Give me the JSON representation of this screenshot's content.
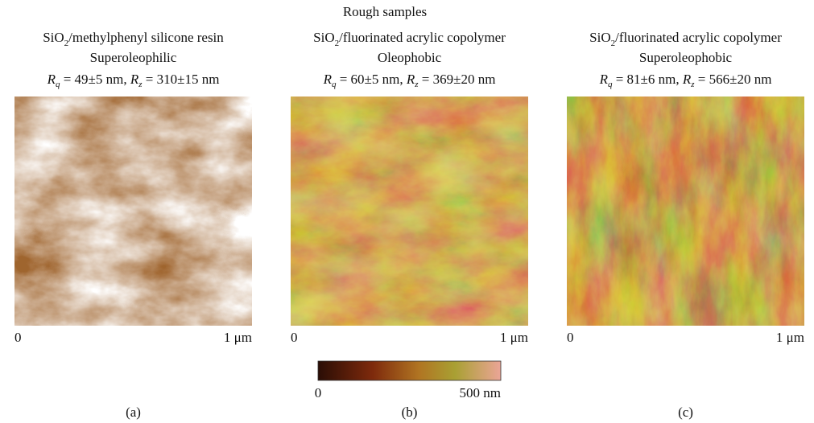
{
  "title": "Rough samples",
  "panels": [
    {
      "material": {
        "base": "SiO",
        "subscript": "2",
        "rest": "/methylphenyl silicone resin"
      },
      "wetting": "Superoleophilic",
      "roughness": {
        "rq_symbol": "R",
        "rq_sub": "q",
        "rq_value": " = 49±5 nm, ",
        "rz_symbol": "R",
        "rz_sub": "z",
        "rz_value": " = 310±15 nm"
      },
      "axis_start": "0",
      "axis_end": "1 μm",
      "label": "(a)"
    },
    {
      "material": {
        "base": "SiO",
        "subscript": "2",
        "rest": "/fluorinated acrylic copolymer"
      },
      "wetting": "Oleophobic",
      "roughness": {
        "rq_symbol": "R",
        "rq_sub": "q",
        "rq_value": " = 60±5 nm, ",
        "rz_symbol": "R",
        "rz_sub": "z",
        "rz_value": " = 369±20 nm"
      },
      "axis_start": "0",
      "axis_end": "1 μm",
      "label": "(b)"
    },
    {
      "material": {
        "base": "SiO",
        "subscript": "2",
        "rest": "/fluorinated acrylic copolymer"
      },
      "wetting": "Superoleophobic",
      "roughness": {
        "rq_symbol": "R",
        "rq_sub": "q",
        "rq_value": " = 81±6 nm, ",
        "rz_symbol": "R",
        "rz_sub": "z",
        "rz_value": " = 566±20 nm"
      },
      "axis_start": "0",
      "axis_end": "1 μm",
      "label": "(c)"
    }
  ],
  "colorbar": {
    "min_label": "0",
    "max_label": "500 nm"
  }
}
